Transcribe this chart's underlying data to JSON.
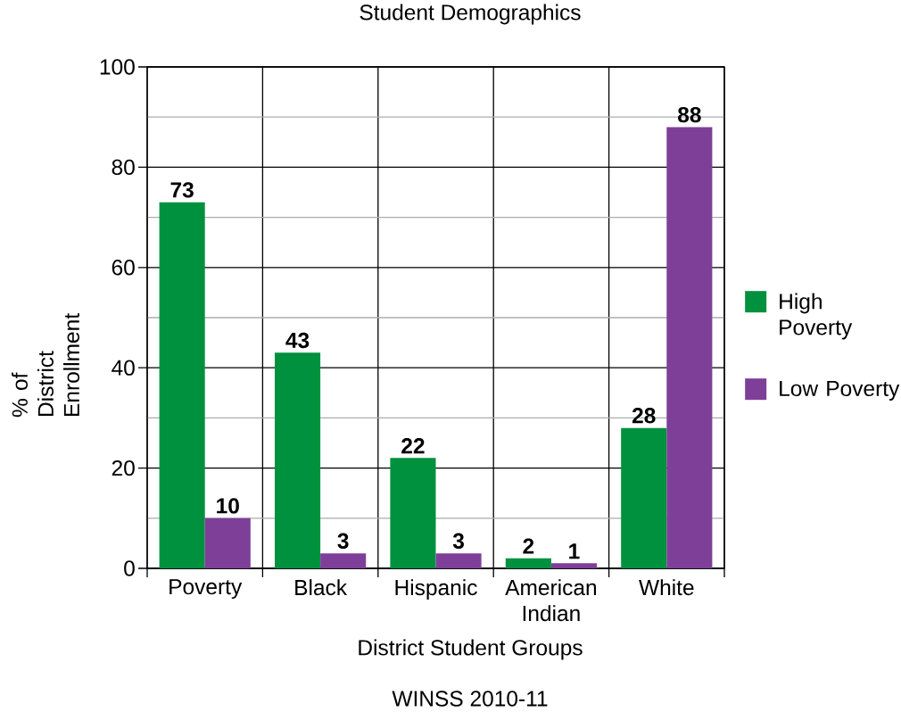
{
  "chart_data": {
    "type": "bar",
    "title": "Student Demographics",
    "xlabel": "District Student Groups",
    "ylabel": "% of District Enrollment",
    "annotations": [
      "WINSS 2010-11"
    ],
    "categories": [
      "Poverty",
      "Black",
      "Hispanic",
      "American Indian",
      "White"
    ],
    "series": [
      {
        "name": "High Poverty",
        "color": "#00913f",
        "values": [
          73,
          43,
          22,
          2,
          28
        ]
      },
      {
        "name": "Low Poverty",
        "color": "#7e3f98",
        "values": [
          10,
          3,
          3,
          1,
          88
        ]
      }
    ],
    "ylim": [
      0,
      100
    ],
    "yticks": [
      0,
      20,
      40,
      60,
      80,
      100
    ],
    "grid": true,
    "legend": "right",
    "data_labels": true
  }
}
